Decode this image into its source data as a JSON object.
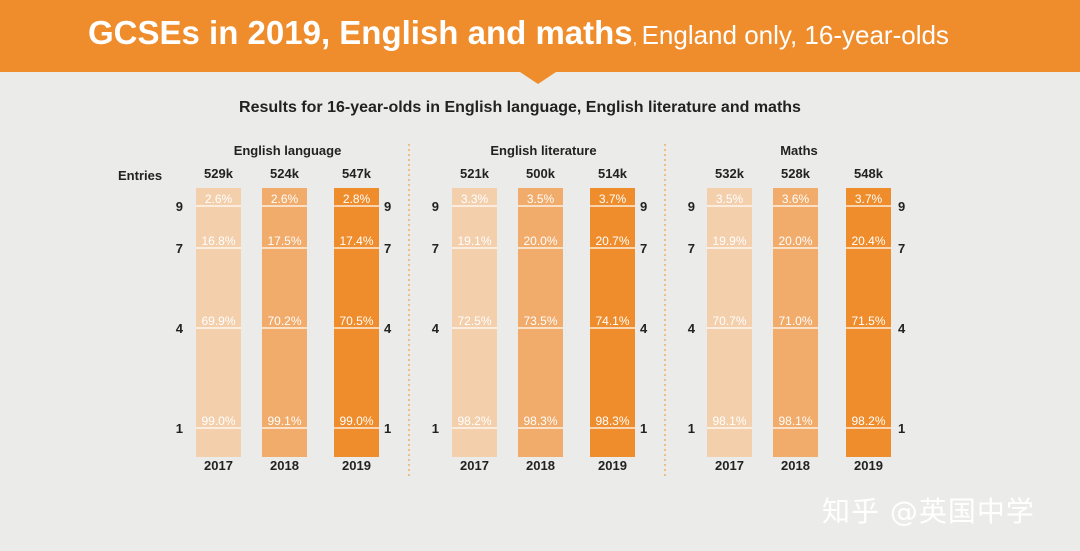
{
  "header": {
    "title_main": "GCSEs in 2019, English and maths",
    "title_sub": "England only, 16-year-olds"
  },
  "watermark": "知乎 @英国中学",
  "chart_data": {
    "type": "bar",
    "title": "Results for 16-year-olds in English language, English literature and maths",
    "entries_label": "Entries",
    "grade_labels": [
      "9",
      "7",
      "4",
      "1"
    ],
    "series_colors": [
      "#f3cfab",
      "#f1ab6a",
      "#ef8c2b"
    ],
    "panels": [
      {
        "name": "English language",
        "bars": [
          {
            "year": "2017",
            "entries": "529k",
            "values": {
              "9": 2.6,
              "7": 16.8,
              "4": 69.9,
              "1": 99.0
            }
          },
          {
            "year": "2018",
            "entries": "524k",
            "values": {
              "9": 2.6,
              "7": 17.5,
              "4": 70.2,
              "1": 99.1
            }
          },
          {
            "year": "2019",
            "entries": "547k",
            "values": {
              "9": 2.8,
              "7": 17.4,
              "4": 70.5,
              "1": 99.0
            }
          }
        ]
      },
      {
        "name": "English literature",
        "bars": [
          {
            "year": "2017",
            "entries": "521k",
            "values": {
              "9": 3.3,
              "7": 19.1,
              "4": 72.5,
              "1": 98.2
            }
          },
          {
            "year": "2018",
            "entries": "500k",
            "values": {
              "9": 3.5,
              "7": 20.0,
              "4": 73.5,
              "1": 98.3
            }
          },
          {
            "year": "2019",
            "entries": "514k",
            "values": {
              "9": 3.7,
              "7": 20.7,
              "4": 74.1,
              "1": 98.3
            }
          }
        ]
      },
      {
        "name": "Maths",
        "bars": [
          {
            "year": "2017",
            "entries": "532k",
            "values": {
              "9": 3.5,
              "7": 19.9,
              "4": 70.7,
              "1": 98.1
            }
          },
          {
            "year": "2018",
            "entries": "528k",
            "values": {
              "9": 3.6,
              "7": 20.0,
              "4": 71.0,
              "1": 98.1
            }
          },
          {
            "year": "2019",
            "entries": "548k",
            "values": {
              "9": 3.7,
              "7": 20.4,
              "4": 71.5,
              "1": 98.2
            }
          }
        ]
      }
    ]
  }
}
